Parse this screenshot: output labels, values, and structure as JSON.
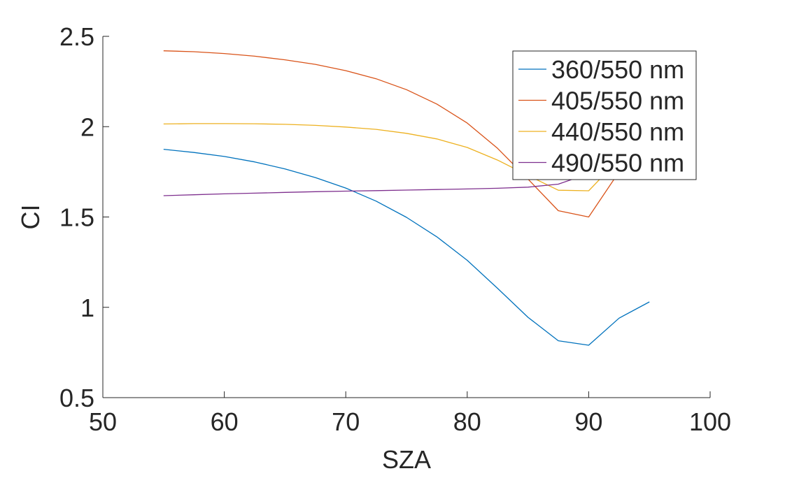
{
  "chart_data": {
    "type": "line",
    "xlabel": "SZA",
    "ylabel": "CI",
    "xlim": [
      50,
      100
    ],
    "ylim": [
      0.5,
      2.5
    ],
    "xticks": [
      50,
      60,
      70,
      80,
      90,
      100
    ],
    "yticks": [
      0.5,
      1,
      1.5,
      2,
      2.5
    ],
    "xtick_labels": [
      "50",
      "60",
      "70",
      "80",
      "90",
      "100"
    ],
    "ytick_labels": [
      "0.5",
      "1",
      "1.5",
      "2",
      "2.5"
    ],
    "grid": false,
    "legend_position": "top-right",
    "x": [
      55,
      57.5,
      60,
      62.5,
      65,
      67.5,
      70,
      72.5,
      75,
      77.5,
      80,
      82.5,
      85,
      87.5,
      90,
      92.5,
      95
    ],
    "series": [
      {
        "name": "360/550 nm",
        "color": "#0072BD",
        "values": [
          1.875,
          1.857,
          1.835,
          1.805,
          1.766,
          1.718,
          1.66,
          1.588,
          1.498,
          1.39,
          1.26,
          1.105,
          0.945,
          0.815,
          0.79,
          0.94,
          1.03
        ]
      },
      {
        "name": "405/550 nm",
        "color": "#D95319",
        "values": [
          2.42,
          2.415,
          2.405,
          2.39,
          2.37,
          2.345,
          2.31,
          2.265,
          2.205,
          2.125,
          2.02,
          1.88,
          1.71,
          1.535,
          1.5,
          1.75,
          2.0
        ]
      },
      {
        "name": "440/550 nm",
        "color": "#EDB120",
        "values": [
          2.015,
          2.017,
          2.017,
          2.016,
          2.013,
          2.007,
          1.998,
          1.985,
          1.963,
          1.932,
          1.885,
          1.815,
          1.73,
          1.648,
          1.645,
          1.82,
          1.95
        ]
      },
      {
        "name": "490/550 nm",
        "color": "#7E2F8E",
        "values": [
          1.618,
          1.623,
          1.628,
          1.632,
          1.636,
          1.64,
          1.643,
          1.646,
          1.649,
          1.652,
          1.655,
          1.659,
          1.665,
          1.682,
          1.74,
          1.78,
          1.8
        ]
      }
    ]
  }
}
